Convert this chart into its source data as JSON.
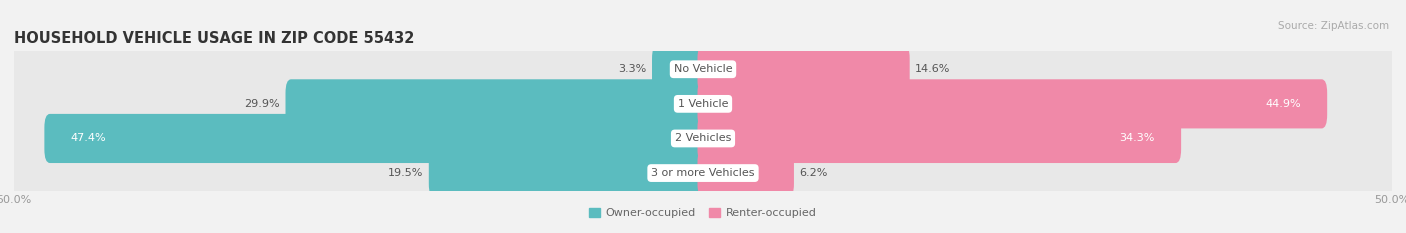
{
  "title": "HOUSEHOLD VEHICLE USAGE IN ZIP CODE 55432",
  "source": "Source: ZipAtlas.com",
  "categories": [
    "No Vehicle",
    "1 Vehicle",
    "2 Vehicles",
    "3 or more Vehicles"
  ],
  "owner_values": [
    3.3,
    29.9,
    47.4,
    19.5
  ],
  "renter_values": [
    14.6,
    44.9,
    34.3,
    6.2
  ],
  "owner_labels": [
    "3.3%",
    "29.9%",
    "47.4%",
    "19.5%"
  ],
  "renter_labels": [
    "14.6%",
    "44.9%",
    "34.3%",
    "6.2%"
  ],
  "owner_color": "#5bbcbf",
  "renter_color": "#f089a8",
  "owner_color_light": "#a8dfe0",
  "renter_color_light": "#f8c0d0",
  "bg_color": "#f2f2f2",
  "bar_bg_color": "#e8e8e8",
  "bar_bg_shadow": "#d0d0d0",
  "xlim_left": -50,
  "xlim_right": 50,
  "legend_owner": "Owner-occupied",
  "legend_renter": "Renter-occupied",
  "bar_height": 0.62,
  "title_fontsize": 10.5,
  "label_fontsize": 8.0,
  "category_fontsize": 8.0,
  "tick_fontsize": 8.0,
  "source_fontsize": 7.5
}
